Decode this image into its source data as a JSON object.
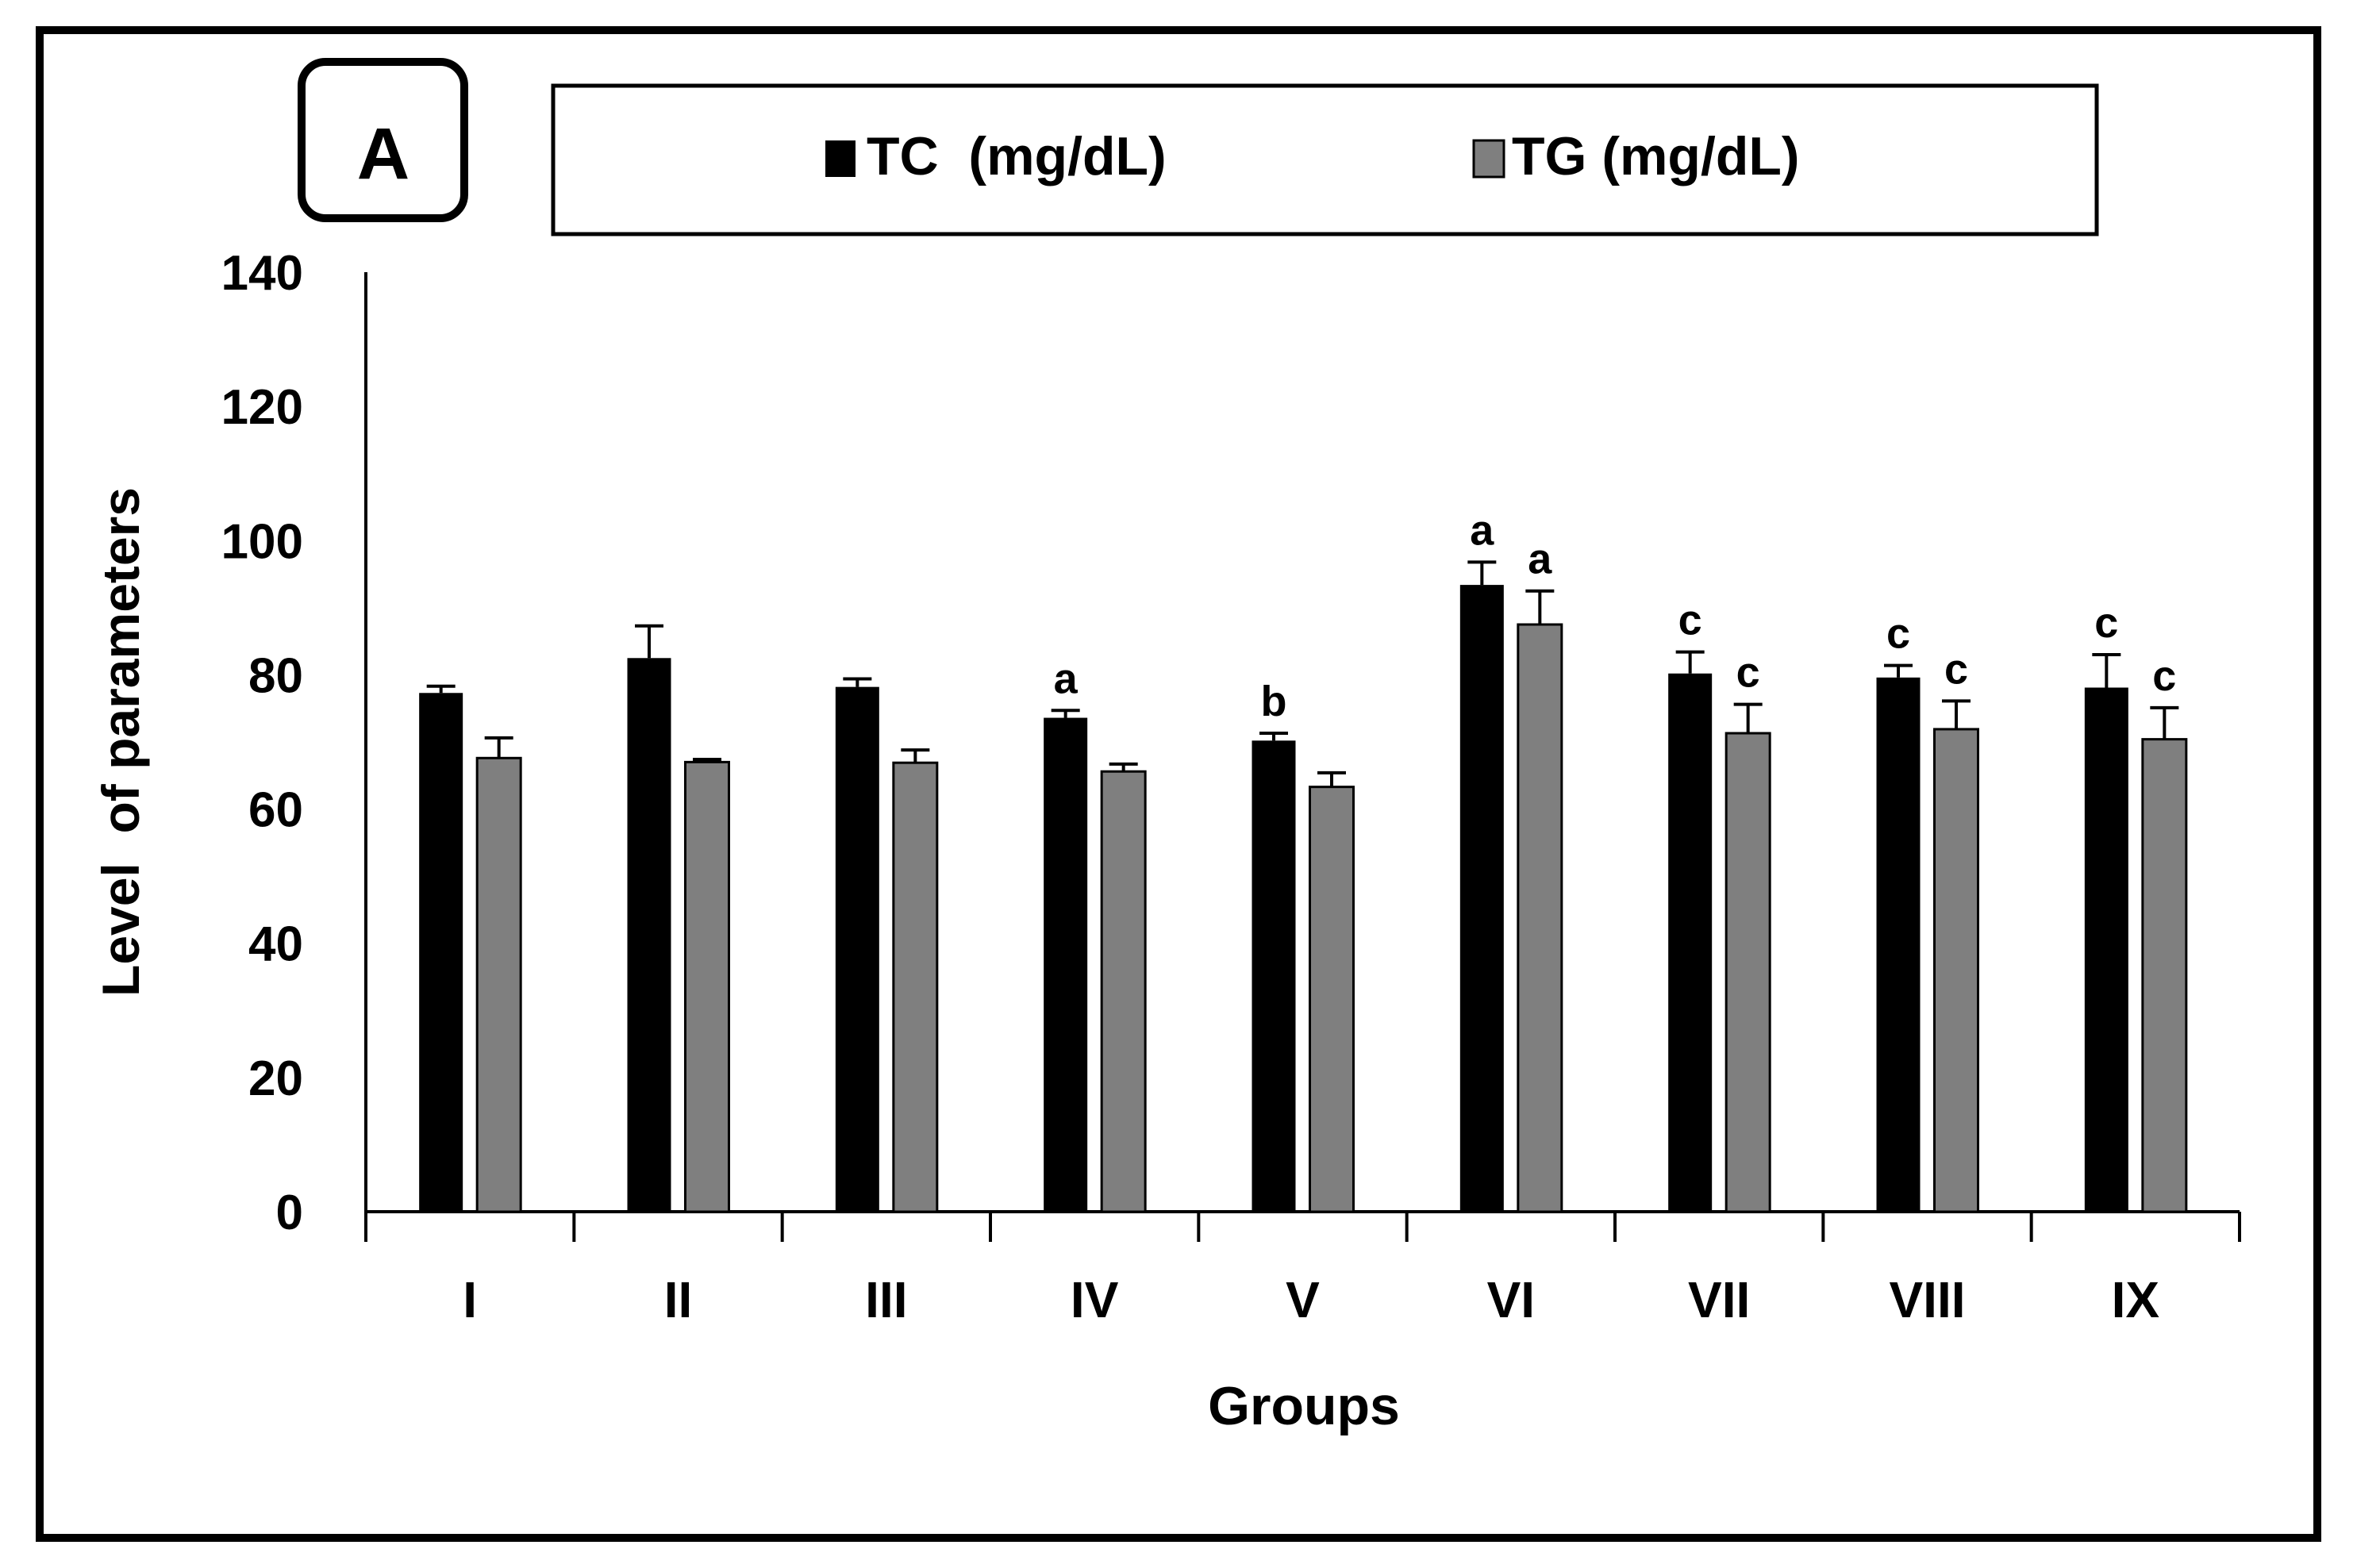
{
  "panel_label": "A",
  "colors": {
    "tc": "#000000",
    "tg": "#7f7f7f",
    "axis": "#000000",
    "text": "#000000"
  },
  "chart_data": {
    "type": "bar",
    "title": "",
    "xlabel": "Groups",
    "ylabel": "Level  of parameters",
    "ylim": [
      0,
      140
    ],
    "yticks": [
      0,
      20,
      40,
      60,
      80,
      100,
      120,
      140
    ],
    "grid": false,
    "legend_position": "top",
    "categories": [
      "I",
      "II",
      "III",
      "IV",
      "V",
      "VI",
      "VII",
      "VIII",
      "IX"
    ],
    "series": [
      {
        "name": "TC  (mg/dL)",
        "values": [
          77.3,
          82.5,
          78.2,
          73.6,
          70.2,
          93.4,
          80.2,
          79.6,
          78.1
        ],
        "errors": [
          1.0,
          4.8,
          1.2,
          1.1,
          1.1,
          3.4,
          3.2,
          1.8,
          4.9
        ],
        "annotations": [
          "",
          "",
          "",
          "a",
          "b",
          "a",
          "c",
          "c",
          "c"
        ]
      },
      {
        "name": "TG (mg/dL)",
        "values": [
          67.6,
          67.0,
          66.9,
          65.6,
          63.3,
          87.5,
          71.3,
          71.9,
          70.4
        ],
        "errors": [
          3.0,
          0.4,
          1.9,
          1.1,
          2.1,
          5.0,
          4.3,
          4.2,
          4.7
        ],
        "annotations": [
          "",
          "",
          "",
          "",
          "",
          "a",
          "c",
          "c",
          "c"
        ]
      }
    ]
  }
}
